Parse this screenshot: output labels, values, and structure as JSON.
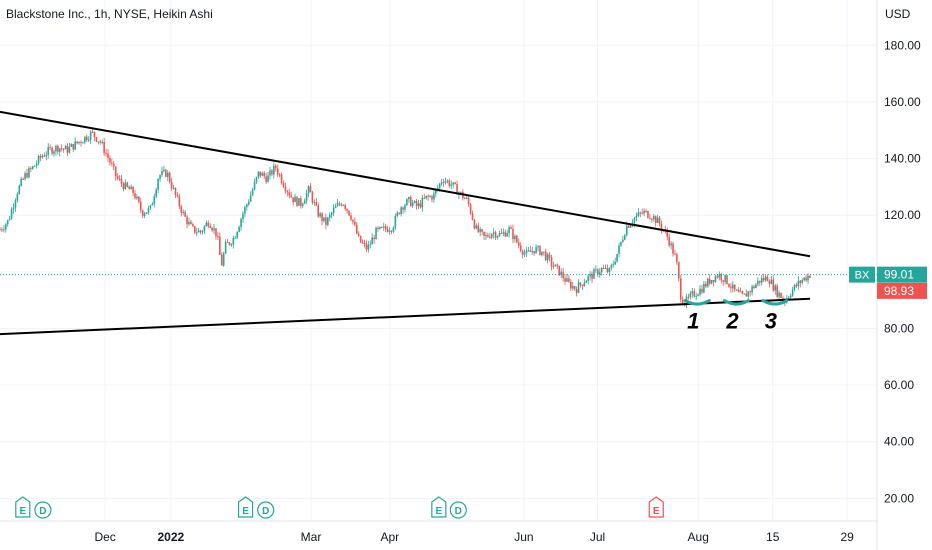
{
  "header": {
    "title": "Blackstone Inc., 1h, NYSE, Heikin Ashi",
    "currency": "USD"
  },
  "colors": {
    "up": "#26a69a",
    "down": "#ef5350",
    "trendline": "#000000",
    "price_line": "#26a69a",
    "grid": "#f0f3fa",
    "axis_text": "#131722",
    "event_badge": "#26a69a",
    "event_badge_future": "#ef5350"
  },
  "chart_data": {
    "type": "candlestick",
    "title": "Blackstone Inc., 1h, NYSE, Heikin Ashi",
    "y_axis": {
      "ticks": [
        "20.00",
        "40.00",
        "60.00",
        "80.00",
        "100.00",
        "120.00",
        "140.00",
        "160.00",
        "180.00"
      ],
      "tick_values": [
        20,
        40,
        60,
        80,
        100,
        120,
        140,
        160,
        180
      ],
      "range": [
        12,
        196
      ],
      "position": "right"
    },
    "x_axis": {
      "ticks": [
        {
          "label": "Dec",
          "t": 0.12
        },
        {
          "label": "2022",
          "t": 0.195,
          "bold": true
        },
        {
          "label": "Mar",
          "t": 0.355
        },
        {
          "label": "Apr",
          "t": 0.445
        },
        {
          "label": "Jun",
          "t": 0.598
        },
        {
          "label": "Jul",
          "t": 0.682
        },
        {
          "label": "Aug",
          "t": 0.797
        },
        {
          "label": "15",
          "t": 0.882
        },
        {
          "label": "29",
          "t": 0.967
        }
      ]
    },
    "series_path": [
      [
        0.0,
        115
      ],
      [
        0.01,
        118
      ],
      [
        0.02,
        128
      ],
      [
        0.03,
        134
      ],
      [
        0.04,
        137
      ],
      [
        0.05,
        141
      ],
      [
        0.06,
        143
      ],
      [
        0.07,
        144
      ],
      [
        0.08,
        143
      ],
      [
        0.09,
        145
      ],
      [
        0.1,
        147
      ],
      [
        0.11,
        149
      ],
      [
        0.12,
        146
      ],
      [
        0.13,
        140
      ],
      [
        0.14,
        133
      ],
      [
        0.15,
        130
      ],
      [
        0.16,
        128
      ],
      [
        0.17,
        121
      ],
      [
        0.18,
        122
      ],
      [
        0.19,
        134
      ],
      [
        0.2,
        135
      ],
      [
        0.21,
        127
      ],
      [
        0.22,
        120
      ],
      [
        0.23,
        115
      ],
      [
        0.24,
        114
      ],
      [
        0.25,
        118
      ],
      [
        0.26,
        113
      ],
      [
        0.265,
        102
      ],
      [
        0.27,
        109
      ],
      [
        0.28,
        112
      ],
      [
        0.29,
        120
      ],
      [
        0.3,
        127
      ],
      [
        0.31,
        135
      ],
      [
        0.32,
        133
      ],
      [
        0.33,
        137
      ],
      [
        0.34,
        131
      ],
      [
        0.35,
        126
      ],
      [
        0.36,
        124
      ],
      [
        0.37,
        129
      ],
      [
        0.38,
        121
      ],
      [
        0.39,
        117
      ],
      [
        0.4,
        122
      ],
      [
        0.41,
        125
      ],
      [
        0.42,
        120
      ],
      [
        0.43,
        111
      ],
      [
        0.44,
        108
      ],
      [
        0.45,
        114
      ],
      [
        0.46,
        115
      ],
      [
        0.47,
        116
      ],
      [
        0.48,
        123
      ],
      [
        0.49,
        125
      ],
      [
        0.5,
        123
      ],
      [
        0.51,
        126
      ],
      [
        0.52,
        127
      ],
      [
        0.53,
        133
      ],
      [
        0.54,
        131
      ],
      [
        0.55,
        128
      ],
      [
        0.56,
        125
      ],
      [
        0.57,
        115
      ],
      [
        0.58,
        112
      ],
      [
        0.59,
        114
      ],
      [
        0.6,
        113
      ],
      [
        0.61,
        115
      ],
      [
        0.62,
        110
      ],
      [
        0.63,
        106
      ],
      [
        0.64,
        108
      ],
      [
        0.65,
        107
      ],
      [
        0.66,
        103
      ],
      [
        0.67,
        100
      ],
      [
        0.68,
        96
      ],
      [
        0.69,
        94
      ],
      [
        0.7,
        97
      ],
      [
        0.71,
        99
      ],
      [
        0.72,
        101
      ],
      [
        0.73,
        100
      ],
      [
        0.74,
        107
      ],
      [
        0.75,
        116
      ],
      [
        0.76,
        119
      ],
      [
        0.77,
        121
      ],
      [
        0.78,
        120
      ],
      [
        0.79,
        117
      ],
      [
        0.8,
        112
      ],
      [
        0.81,
        104
      ],
      [
        0.815,
        92
      ],
      [
        0.82,
        89
      ],
      [
        0.83,
        92
      ],
      [
        0.84,
        94
      ],
      [
        0.85,
        97
      ],
      [
        0.86,
        99
      ],
      [
        0.87,
        97
      ],
      [
        0.88,
        93
      ],
      [
        0.89,
        91
      ],
      [
        0.9,
        94
      ],
      [
        0.91,
        97
      ],
      [
        0.92,
        98
      ],
      [
        0.93,
        93
      ],
      [
        0.94,
        90
      ],
      [
        0.95,
        94
      ],
      [
        0.96,
        97
      ],
      [
        0.97,
        99.01
      ]
    ],
    "trendlines": [
      {
        "name": "upper",
        "from": [
          0.0,
          156.5
        ],
        "to": [
          1.0,
          105.5
        ]
      },
      {
        "name": "lower",
        "from": [
          0.0,
          78
        ],
        "to": [
          1.0,
          90.5
        ]
      }
    ],
    "annotations": [
      {
        "label": "1",
        "t": 0.835,
        "y": 89.5
      },
      {
        "label": "2",
        "t": 0.882,
        "y": 89.5
      },
      {
        "label": "3",
        "t": 0.928,
        "y": 89.5
      }
    ],
    "price_labels": [
      {
        "symbol": "BX",
        "value": "99.01",
        "y": 99.01,
        "color": "#26a69a"
      },
      {
        "symbol": "",
        "value": "98.93",
        "y": 98.93,
        "color": "#ef5350"
      }
    ],
    "event_badges": [
      {
        "label": "E",
        "t": 0.028
      },
      {
        "label": "D",
        "t": 0.058
      },
      {
        "label": "E",
        "t": 0.36
      },
      {
        "label": "D",
        "t": 0.39
      },
      {
        "label": "E",
        "t": 0.648
      },
      {
        "label": "D",
        "t": 0.677
      },
      {
        "label": "E",
        "t": 0.972,
        "future": true
      }
    ]
  }
}
